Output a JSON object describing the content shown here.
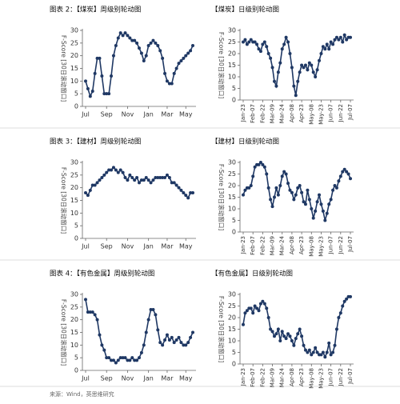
{
  "source": "来源：Wind，英思维研究",
  "chart_data": [
    {
      "type": "line",
      "title": "图表 2：【煤炭】周级别轮动图",
      "ylabel": "F-Score [30日滚动窗口]",
      "color": "#1f3864",
      "categories": [
        "Jul",
        null,
        null,
        null,
        null,
        null,
        null,
        null,
        null,
        "Sep",
        null,
        null,
        null,
        null,
        null,
        null,
        null,
        null,
        "Nov",
        null,
        null,
        null,
        null,
        null,
        null,
        null,
        null,
        "Jan",
        null,
        null,
        null,
        null,
        null,
        null,
        null,
        "Mar",
        null,
        null,
        null,
        null,
        null,
        null,
        null,
        "May",
        null,
        null,
        null
      ],
      "values": [
        10,
        7,
        4,
        6,
        13,
        19,
        19,
        12,
        5,
        5,
        5,
        12,
        20,
        24,
        27,
        29,
        28,
        29,
        28,
        27,
        26,
        26,
        25,
        23,
        21,
        18,
        20,
        24,
        25,
        26,
        25,
        24,
        22,
        19,
        13,
        10,
        9,
        9,
        13,
        15,
        17,
        18,
        19,
        20,
        21,
        22,
        24
      ],
      "ylim": [
        0,
        30
      ],
      "yticks": [
        0,
        5,
        10,
        15,
        20,
        25,
        30
      ]
    },
    {
      "type": "line",
      "title": "【煤炭】日级别轮动图",
      "ylabel": "F-Score [30日滚动窗口]",
      "color": "#1f3864",
      "categories": [
        "Jan-23",
        null,
        null,
        null,
        null,
        "Feb-07",
        null,
        null,
        null,
        null,
        "Feb-22",
        null,
        null,
        null,
        null,
        "Mar-09",
        null,
        null,
        null,
        null,
        "Mar-24",
        null,
        null,
        null,
        null,
        "Apr-08",
        null,
        null,
        null,
        null,
        "Apr-23",
        null,
        null,
        null,
        null,
        "May-08",
        null,
        null,
        null,
        null,
        "May-23",
        null,
        null,
        null,
        null,
        "Jun-07",
        null,
        null,
        null,
        null,
        "Jun-22",
        null,
        null,
        null,
        null,
        "Jul-07"
      ],
      "values": [
        25,
        26,
        24,
        25,
        26,
        25,
        25,
        24,
        22,
        21,
        24,
        25,
        23,
        20,
        18,
        14,
        8,
        6,
        12,
        16,
        22,
        24,
        27,
        25,
        20,
        14,
        6,
        2,
        8,
        12,
        15,
        14,
        15,
        13,
        16,
        15,
        12,
        10,
        13,
        17,
        20,
        23,
        22,
        24,
        22,
        25,
        24,
        26,
        27,
        26,
        27,
        25,
        28,
        26,
        27,
        27
      ],
      "ylim": [
        0,
        30
      ],
      "yticks": [
        0,
        5,
        10,
        15,
        20,
        25,
        30
      ]
    },
    {
      "type": "line",
      "title": "图表 3：【建材】周级别轮动图",
      "ylabel": "F-Score [30日滚动窗口]",
      "color": "#1f3864",
      "categories": [
        "Jul",
        null,
        null,
        null,
        null,
        null,
        null,
        null,
        null,
        "Sep",
        null,
        null,
        null,
        null,
        null,
        null,
        null,
        null,
        "Nov",
        null,
        null,
        null,
        null,
        null,
        null,
        null,
        null,
        "Jan",
        null,
        null,
        null,
        null,
        null,
        null,
        null,
        "Mar",
        null,
        null,
        null,
        null,
        null,
        null,
        null,
        "May",
        null,
        null,
        null
      ],
      "values": [
        18,
        17,
        19,
        21,
        21,
        22,
        23,
        24,
        25,
        26,
        27,
        27,
        28,
        27,
        26,
        27,
        26,
        24,
        23,
        25,
        24,
        23,
        24,
        22,
        23,
        23,
        24,
        23,
        22,
        23,
        24,
        24,
        24,
        24,
        24,
        25,
        24,
        22,
        22,
        21,
        20,
        19,
        18,
        17,
        16,
        18,
        18
      ],
      "ylim": [
        0,
        30
      ],
      "yticks": [
        0,
        5,
        10,
        15,
        20,
        25,
        30
      ]
    },
    {
      "type": "line",
      "title": "【建材】日级别轮动图",
      "ylabel": "F-Score [30日滚动窗口]",
      "color": "#1f3864",
      "categories": [
        "Jan-23",
        null,
        null,
        null,
        null,
        "Feb-07",
        null,
        null,
        null,
        null,
        "Feb-22",
        null,
        null,
        null,
        null,
        "Mar-09",
        null,
        null,
        null,
        null,
        "Mar-24",
        null,
        null,
        null,
        null,
        "Apr-08",
        null,
        null,
        null,
        null,
        "Apr-23",
        null,
        null,
        null,
        null,
        "May-08",
        null,
        null,
        null,
        null,
        "May-23",
        null,
        null,
        null,
        null,
        "Jun-07",
        null,
        null,
        null,
        null,
        "Jun-22",
        null,
        null,
        null,
        null,
        "Jul-07"
      ],
      "values": [
        16,
        18,
        19,
        19,
        20,
        24,
        28,
        29,
        29,
        30,
        29,
        28,
        25,
        19,
        14,
        11,
        15,
        19,
        16,
        20,
        24,
        26,
        25,
        21,
        18,
        17,
        14,
        16,
        19,
        20,
        17,
        13,
        12,
        18,
        14,
        10,
        6,
        9,
        13,
        16,
        12,
        9,
        5,
        8,
        12,
        14,
        18,
        20,
        19,
        22,
        24,
        26,
        27,
        26,
        25,
        23
      ],
      "ylim": [
        0,
        30
      ],
      "yticks": [
        0,
        5,
        10,
        15,
        20,
        25,
        30
      ]
    },
    {
      "type": "line",
      "title": "图表 4：【有色金属】周级别轮动图",
      "ylabel": "F-Score [30日滚动窗口]",
      "color": "#1f3864",
      "categories": [
        "Jul",
        null,
        null,
        null,
        null,
        null,
        null,
        null,
        null,
        "Sep",
        null,
        null,
        null,
        null,
        null,
        null,
        null,
        null,
        "Nov",
        null,
        null,
        null,
        null,
        null,
        null,
        null,
        null,
        "Jan",
        null,
        null,
        null,
        null,
        null,
        null,
        null,
        "Mar",
        null,
        null,
        null,
        null,
        null,
        null,
        null,
        "May",
        null,
        null,
        null
      ],
      "values": [
        28,
        23,
        23,
        23,
        22,
        20,
        14,
        10,
        8,
        5,
        5,
        4,
        4,
        3,
        4,
        5,
        5,
        5,
        4,
        4,
        5,
        4,
        4,
        5,
        7,
        10,
        15,
        20,
        24,
        24,
        22,
        16,
        11,
        10,
        12,
        14,
        12,
        13,
        11,
        12,
        13,
        11,
        10,
        10,
        11,
        13,
        15
      ],
      "ylim": [
        0,
        30
      ],
      "yticks": [
        0,
        5,
        10,
        15,
        20,
        25,
        30
      ]
    },
    {
      "type": "line",
      "title": "【有色金属】日级别轮动图",
      "ylabel": "F-Score [30日滚动窗口]",
      "color": "#1f3864",
      "categories": [
        "Jan-23",
        null,
        null,
        null,
        null,
        "Feb-07",
        null,
        null,
        null,
        null,
        "Feb-22",
        null,
        null,
        null,
        null,
        "Mar-09",
        null,
        null,
        null,
        null,
        "Mar-24",
        null,
        null,
        null,
        null,
        "Apr-08",
        null,
        null,
        null,
        null,
        "Apr-23",
        null,
        null,
        null,
        null,
        "May-08",
        null,
        null,
        null,
        null,
        "May-23",
        null,
        null,
        null,
        null,
        "Jun-07",
        null,
        null,
        null,
        null,
        "Jun-22",
        null,
        null,
        null,
        null,
        "Jul-07"
      ],
      "values": [
        17,
        22,
        23,
        24,
        24,
        22,
        25,
        24,
        23,
        26,
        27,
        26,
        24,
        20,
        15,
        14,
        12,
        13,
        15,
        10,
        14,
        12,
        11,
        13,
        12,
        10,
        8,
        11,
        13,
        15,
        12,
        8,
        6,
        5,
        6,
        4,
        5,
        7,
        5,
        4,
        4,
        5,
        3,
        5,
        9,
        4,
        5,
        8,
        15,
        20,
        22,
        25,
        27,
        28,
        29,
        29
      ],
      "ylim": [
        0,
        30
      ],
      "yticks": [
        0,
        5,
        10,
        15,
        20,
        25,
        30
      ]
    }
  ]
}
